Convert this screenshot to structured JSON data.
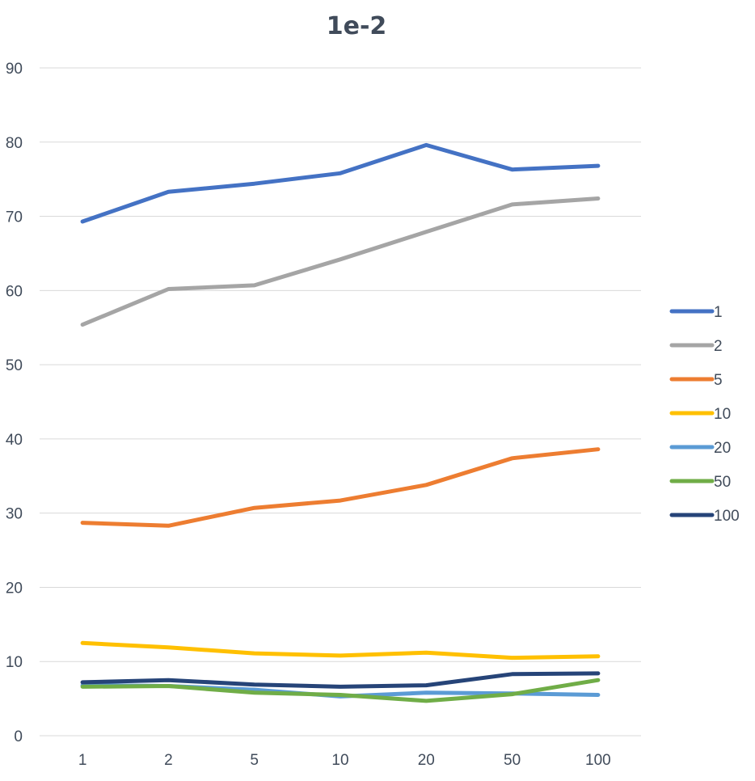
{
  "chart_data": {
    "type": "line",
    "title": "1e-2",
    "xlabel": "",
    "ylabel": "",
    "categories": [
      "1",
      "2",
      "5",
      "10",
      "20",
      "50",
      "100"
    ],
    "ylim": [
      0,
      90
    ],
    "yticks": [
      0,
      10,
      20,
      30,
      40,
      50,
      60,
      70,
      80,
      90
    ],
    "yticks_label": [
      "0",
      "10",
      "20",
      "30",
      "40",
      "50",
      "60",
      "70",
      "80",
      "90"
    ],
    "grid": true,
    "legend_position": "right",
    "series": [
      {
        "name": "1",
        "color": "#4472c4",
        "values": [
          69.3,
          73.3,
          74.4,
          75.8,
          79.6,
          76.3,
          76.8
        ]
      },
      {
        "name": "2",
        "color": "#a5a5a5",
        "values": [
          55.4,
          60.2,
          60.7,
          64.2,
          67.9,
          71.6,
          72.4
        ]
      },
      {
        "name": "5",
        "color": "#ed7d31",
        "values": [
          28.7,
          28.3,
          30.7,
          31.7,
          33.8,
          37.4,
          38.6
        ]
      },
      {
        "name": "10",
        "color": "#ffc000",
        "values": [
          12.5,
          11.9,
          11.1,
          10.8,
          11.2,
          10.5,
          10.7
        ]
      },
      {
        "name": "20",
        "color": "#5b9bd5",
        "values": [
          6.8,
          6.7,
          6.2,
          5.3,
          5.8,
          5.7,
          5.5
        ]
      },
      {
        "name": "50",
        "color": "#70ad47",
        "values": [
          6.6,
          6.7,
          5.8,
          5.5,
          4.7,
          5.6,
          7.5
        ]
      },
      {
        "name": "100",
        "color": "#264478",
        "values": [
          7.2,
          7.5,
          6.9,
          6.6,
          6.8,
          8.3,
          8.4
        ]
      }
    ]
  }
}
